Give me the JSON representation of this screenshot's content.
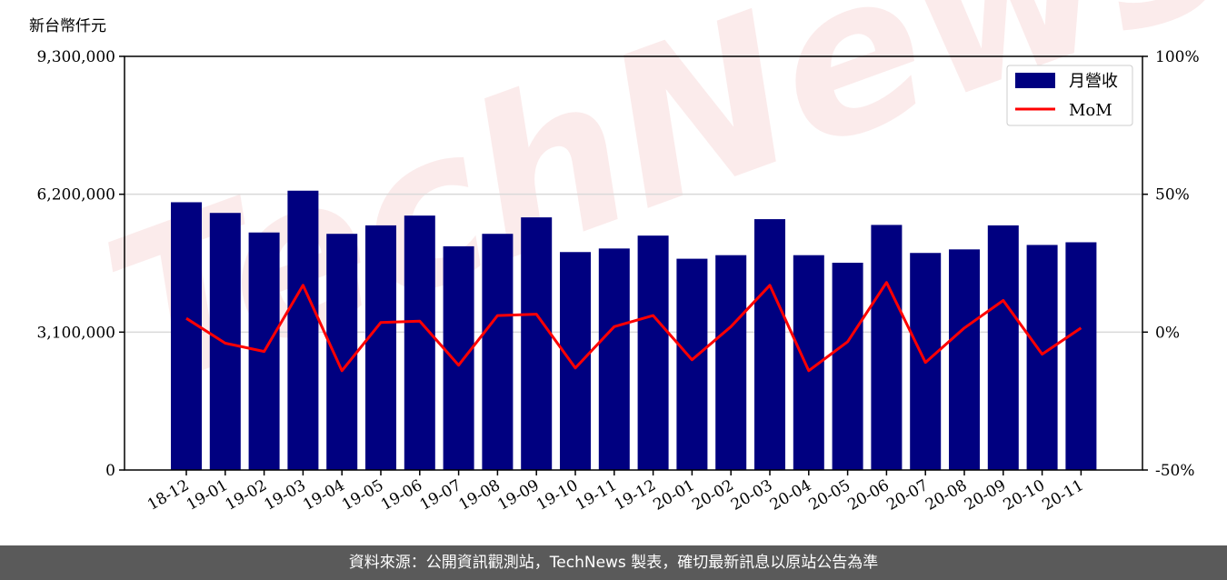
{
  "chart_data": {
    "type": "bar",
    "unit_label": "新台幣仟元",
    "watermark": "TechNews",
    "categories": [
      "18-12",
      "19-01",
      "19-02",
      "19-03",
      "19-04",
      "19-05",
      "19-06",
      "19-07",
      "19-08",
      "19-09",
      "19-10",
      "19-11",
      "19-12",
      "20-01",
      "20-02",
      "20-03",
      "20-04",
      "20-05",
      "20-06",
      "20-07",
      "20-08",
      "20-09",
      "20-10",
      "20-11"
    ],
    "series": [
      {
        "name": "月營收",
        "type": "bar",
        "axis": "left",
        "color": "#000080",
        "values": [
          6020000,
          5780000,
          5340000,
          6280000,
          5310000,
          5500000,
          5720000,
          5030000,
          5310000,
          5680000,
          4900000,
          4980000,
          5270000,
          4750000,
          4830000,
          5640000,
          4830000,
          4660000,
          5510000,
          4880000,
          4960000,
          5500000,
          5060000,
          5120000
        ]
      },
      {
        "name": "MoM",
        "type": "line",
        "axis": "right",
        "color": "#ff0000",
        "values": [
          0.05,
          -0.04,
          -0.07,
          0.17,
          -0.14,
          0.035,
          0.04,
          -0.12,
          0.06,
          0.065,
          -0.13,
          0.02,
          0.06,
          -0.1,
          0.02,
          0.17,
          -0.14,
          -0.035,
          0.18,
          -0.11,
          0.015,
          0.115,
          -0.08,
          0.015
        ]
      }
    ],
    "y_left": {
      "ylim": [
        0,
        9300000
      ],
      "ticks": [
        0,
        3100000,
        6200000,
        9300000
      ],
      "tick_labels": [
        "0",
        "3,100,000",
        "6,200,000",
        "9,300,000"
      ]
    },
    "y_right": {
      "ylim": [
        -0.5,
        1.0
      ],
      "ticks": [
        -0.5,
        0,
        0.5,
        1.0
      ],
      "tick_labels": [
        "-50%",
        "0%",
        "50%",
        "100%"
      ]
    },
    "grid": "horizontal",
    "legend_position": "top-right"
  },
  "footer": {
    "text": "資料來源：公開資訊觀測站，TechNews 製表，確切最新訊息以原站公告為準"
  }
}
